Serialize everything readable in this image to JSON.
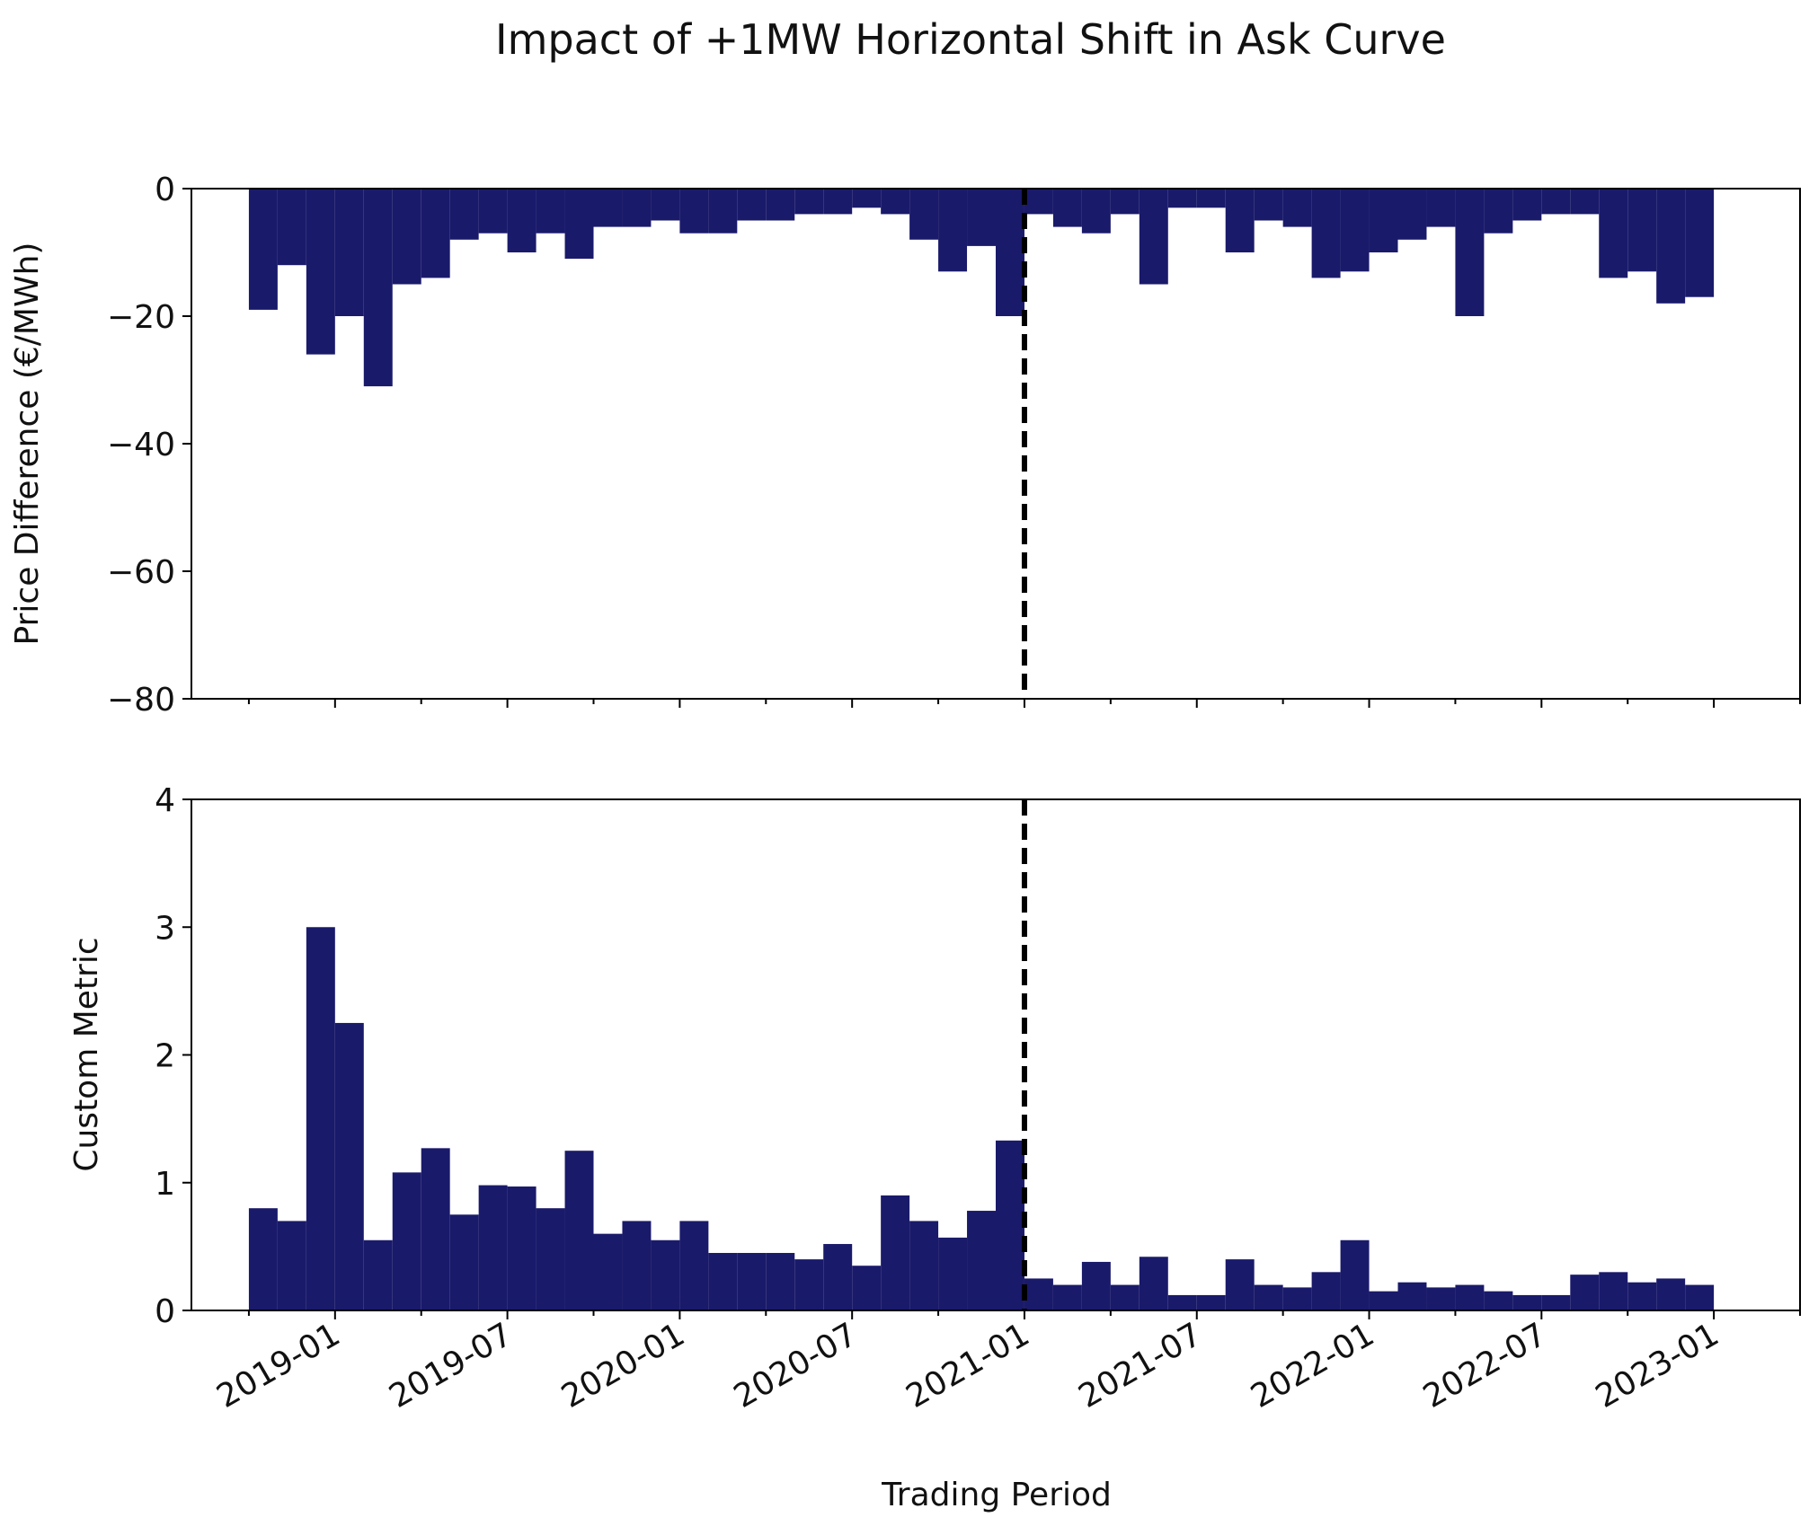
{
  "chart_data": [
    {
      "type": "bar",
      "title": "Impact of +1MW Horizontal Shift in Ask Curve",
      "ylabel": "Price Difference (€/MWh)",
      "color": "#1a1a6b",
      "vline": "2021-01",
      "x": [
        "2018-10",
        "2018-11",
        "2018-12",
        "2019-01",
        "2019-02",
        "2019-03",
        "2019-04",
        "2019-05",
        "2019-06",
        "2019-07",
        "2019-08",
        "2019-09",
        "2019-10",
        "2019-11",
        "2019-12",
        "2020-01",
        "2020-02",
        "2020-03",
        "2020-04",
        "2020-05",
        "2020-06",
        "2020-07",
        "2020-08",
        "2020-09",
        "2020-10",
        "2020-11",
        "2020-12",
        "2021-01",
        "2021-02",
        "2021-03",
        "2021-04",
        "2021-05",
        "2021-06",
        "2021-07",
        "2021-08",
        "2021-09",
        "2021-10",
        "2021-11",
        "2021-12",
        "2022-01",
        "2022-02",
        "2022-03",
        "2022-04",
        "2022-05",
        "2022-06",
        "2022-07",
        "2022-08",
        "2022-09",
        "2022-10",
        "2022-11",
        "2022-12"
      ],
      "values": [
        -19,
        -12,
        -26,
        -20,
        -31,
        -15,
        -14,
        -8,
        -7,
        -10,
        -7,
        -11,
        -6,
        -6,
        -5,
        -7,
        -7,
        -5,
        -5,
        -4,
        -4,
        -3,
        -4,
        -8,
        -13,
        -9,
        -20,
        -4,
        -6,
        -7,
        -4,
        -15,
        -3,
        -3,
        -10,
        -5,
        -6,
        -14,
        -13,
        -10,
        -8,
        -6,
        -20,
        -7,
        -5,
        -4,
        -4,
        -14,
        -13,
        -18,
        -17
      ],
      "xlim": [
        "2018-08",
        "2023-04"
      ],
      "xminorticks": [
        "2018-10",
        "2019-04",
        "2019-10",
        "2020-04",
        "2020-10",
        "2021-04",
        "2021-10",
        "2022-04",
        "2022-10",
        "2023-04"
      ],
      "ylim": [
        -80,
        0
      ],
      "yticks": [
        0,
        {
          "value": -20,
          "label": "−20"
        },
        {
          "value": -40,
          "label": "−40"
        },
        {
          "value": -60,
          "label": "−60"
        },
        {
          "value": -80,
          "label": "−80"
        }
      ]
    },
    {
      "type": "bar",
      "ylabel": "Custom Metric",
      "xlabel": "Trading Period",
      "color": "#1a1a6b",
      "vline": "2021-01",
      "x": [
        "2018-10",
        "2018-11",
        "2018-12",
        "2019-01",
        "2019-02",
        "2019-03",
        "2019-04",
        "2019-05",
        "2019-06",
        "2019-07",
        "2019-08",
        "2019-09",
        "2019-10",
        "2019-11",
        "2019-12",
        "2020-01",
        "2020-02",
        "2020-03",
        "2020-04",
        "2020-05",
        "2020-06",
        "2020-07",
        "2020-08",
        "2020-09",
        "2020-10",
        "2020-11",
        "2020-12",
        "2021-01",
        "2021-02",
        "2021-03",
        "2021-04",
        "2021-05",
        "2021-06",
        "2021-07",
        "2021-08",
        "2021-09",
        "2021-10",
        "2021-11",
        "2021-12",
        "2022-01",
        "2022-02",
        "2022-03",
        "2022-04",
        "2022-05",
        "2022-06",
        "2022-07",
        "2022-08",
        "2022-09",
        "2022-10",
        "2022-11",
        "2022-12"
      ],
      "values": [
        0.8,
        0.7,
        3.0,
        2.25,
        0.55,
        1.08,
        1.27,
        0.75,
        0.98,
        0.97,
        0.8,
        1.25,
        0.6,
        0.7,
        0.55,
        0.7,
        0.45,
        0.45,
        0.45,
        0.4,
        0.52,
        0.35,
        0.9,
        0.7,
        0.57,
        0.78,
        1.33,
        0.25,
        0.2,
        0.38,
        0.2,
        0.42,
        0.12,
        0.12,
        0.4,
        0.2,
        0.18,
        0.3,
        0.55,
        0.15,
        0.22,
        0.18,
        0.2,
        0.15,
        0.12,
        0.12,
        0.28,
        0.3,
        0.22,
        0.25,
        0.2
      ],
      "xlim": [
        "2018-08",
        "2023-04"
      ],
      "xticks": [
        "2019-01",
        "2019-07",
        "2020-01",
        "2020-07",
        "2021-01",
        "2021-07",
        "2022-01",
        "2022-07",
        "2023-01"
      ],
      "xminorticks": [
        "2018-10",
        "2019-04",
        "2019-10",
        "2020-04",
        "2020-10",
        "2021-04",
        "2021-10",
        "2022-04",
        "2022-10",
        "2023-04"
      ],
      "ylim": [
        0,
        4
      ],
      "yticks": [
        0,
        1,
        2,
        3,
        4
      ]
    }
  ]
}
